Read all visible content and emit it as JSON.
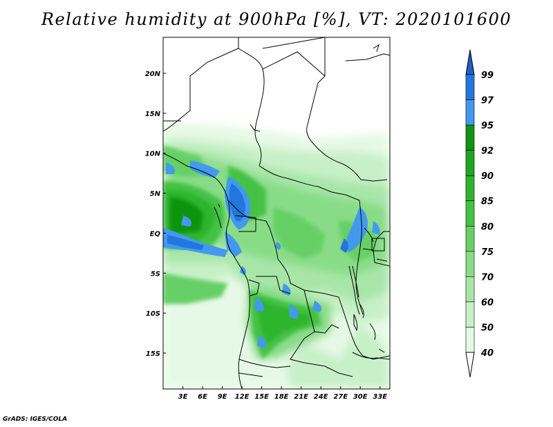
{
  "title": "Relative humidity at 900hPa [%], VT: 2020101600",
  "credit": "GrADS: IGES/COLA",
  "map": {
    "lat_ticks": [
      {
        "value": 20,
        "label": "20N"
      },
      {
        "value": 15,
        "label": "15N"
      },
      {
        "value": 10,
        "label": "10N"
      },
      {
        "value": 5,
        "label": "5N"
      },
      {
        "value": 0,
        "label": "EQ"
      },
      {
        "value": -5,
        "label": "5S"
      },
      {
        "value": -10,
        "label": "10S"
      },
      {
        "value": -15,
        "label": "15S"
      }
    ],
    "lon_ticks": [
      {
        "value": 3,
        "label": "3E"
      },
      {
        "value": 6,
        "label": "6E"
      },
      {
        "value": 9,
        "label": "9E"
      },
      {
        "value": 12,
        "label": "12E"
      },
      {
        "value": 15,
        "label": "15E"
      },
      {
        "value": 18,
        "label": "18E"
      },
      {
        "value": 21,
        "label": "21E"
      },
      {
        "value": 24,
        "label": "24E"
      },
      {
        "value": 27,
        "label": "27E"
      },
      {
        "value": 30,
        "label": "30E"
      },
      {
        "value": 33,
        "label": "33E"
      }
    ],
    "lon_range": [
      0,
      34.5
    ],
    "lat_range": [
      -19.5,
      24.5
    ]
  },
  "colorbar": {
    "levels": [
      "40",
      "50",
      "60",
      "70",
      "75",
      "80",
      "85",
      "90",
      "92",
      "95",
      "97",
      "99"
    ],
    "colors": [
      "#ffffff",
      "#e6f9e6",
      "#c8f0c8",
      "#a8e6a8",
      "#88dc88",
      "#66d066",
      "#44c244",
      "#2db52d",
      "#1fa61f",
      "#119411",
      "#4499ee",
      "#2277dd",
      "#1f5fc4"
    ]
  }
}
